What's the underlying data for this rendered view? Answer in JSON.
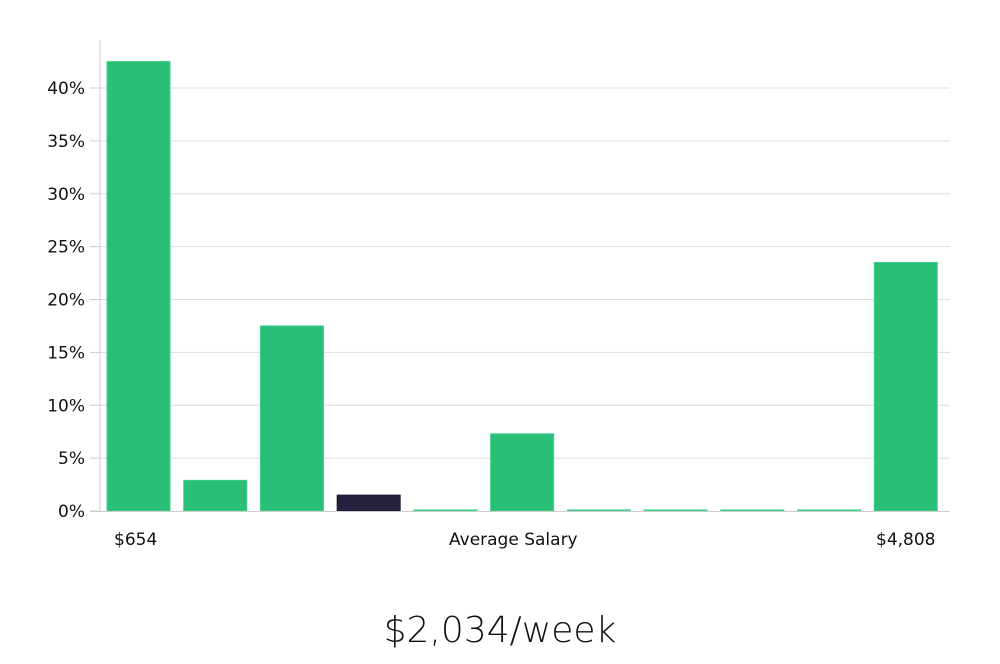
{
  "chart_data": {
    "type": "bar",
    "title": "",
    "xlabel": "Average Salary",
    "ylabel": "",
    "categories": [
      "$654",
      "",
      "",
      "",
      "",
      "",
      "",
      "",
      "",
      "",
      "$4,808"
    ],
    "values": [
      42.5,
      2.9,
      17.5,
      1.5,
      0.1,
      7.3,
      0.1,
      0.1,
      0.1,
      0.1,
      23.5
    ],
    "highlight_index": 3,
    "ylim": [
      0,
      44
    ],
    "yticks": [
      0,
      5,
      10,
      15,
      20,
      25,
      30,
      35,
      40
    ],
    "ytick_labels": [
      "0%",
      "5%",
      "10%",
      "15%",
      "20%",
      "25%",
      "30%",
      "35%",
      "40%"
    ],
    "grid": true,
    "legend": "none",
    "colors": {
      "bar": "#2abf77",
      "highlight": "#24223f",
      "grid": "#dddddd",
      "axis": "#cccccc"
    }
  },
  "x_axis": {
    "min_label": "$654",
    "center_label": "Average Salary",
    "max_label": "$4,808"
  },
  "footer": {
    "salary_text": "$2,034/week"
  }
}
